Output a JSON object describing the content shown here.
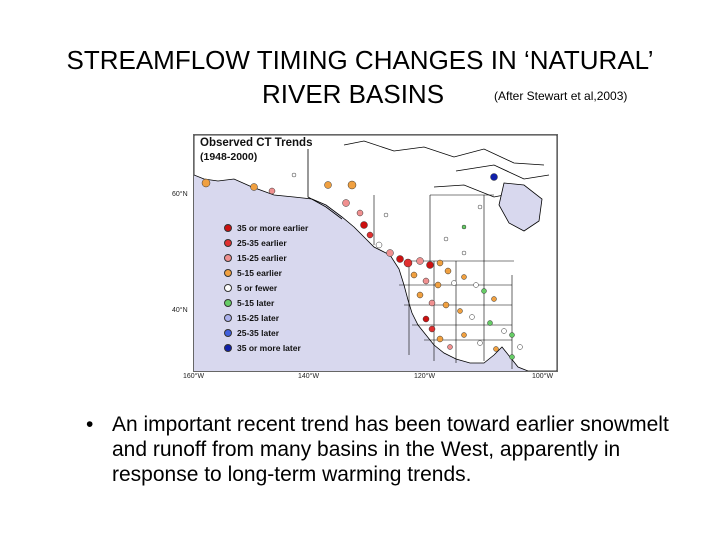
{
  "slide": {
    "title_line1": "STREAMFLOW TIMING CHANGES IN ‘NATURAL’",
    "title_line2": "RIVER BASINS",
    "citation": "(After Stewart et al,2003)"
  },
  "map": {
    "title": "Observed CT Trends",
    "subtitle": "(1948-2000)",
    "latitude_labels": [
      "60°N",
      "40°N"
    ],
    "longitude_labels": [
      "160°W",
      "140°W",
      "120°W",
      "100°W"
    ],
    "colors": {
      "ocean": "#d8d8ee",
      "land": "#ffffff",
      "border": "#000000"
    },
    "legend": [
      {
        "label": "35 or more earlier",
        "color": "#cc1111"
      },
      {
        "label": "25-35 earlier",
        "color": "#e03030"
      },
      {
        "label": "15-25 earlier",
        "color": "#f09090"
      },
      {
        "label": "5-15 earlier",
        "color": "#f0a040"
      },
      {
        "label": "5 or fewer",
        "color": "#ffffff"
      },
      {
        "label": "5-15 later",
        "color": "#66cc66"
      },
      {
        "label": "15-25 later",
        "color": "#aab0ee"
      },
      {
        "label": "25-35 later",
        "color": "#4060dd"
      },
      {
        "label": "35 or more later",
        "color": "#1020aa"
      }
    ]
  },
  "bullet": {
    "symbol": "•",
    "text": "An important recent trend has been toward earlier snowmelt and runoff from many basins in the West, apparently in response to long-term warming trends."
  }
}
